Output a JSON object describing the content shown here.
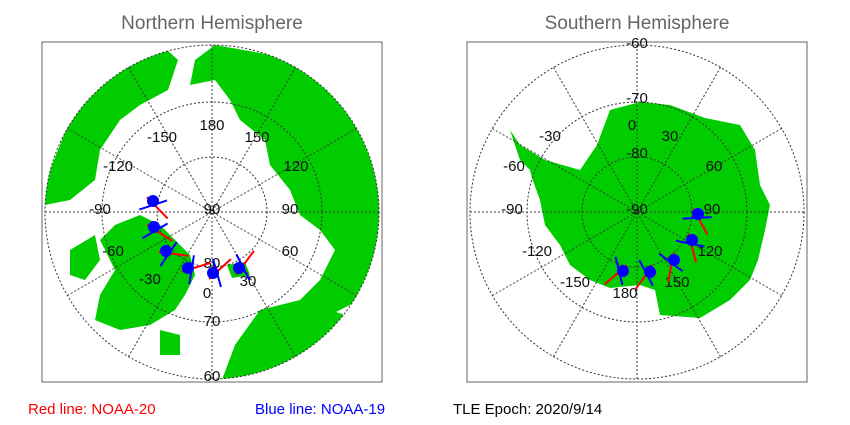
{
  "north": {
    "title": "Northern Hemisphere",
    "lon_labels": [
      "180",
      "-150",
      "150",
      "-120",
      "120",
      "-90",
      "90",
      "-60",
      "60",
      "-30",
      "30",
      "0"
    ],
    "lat_labels": [
      "90",
      "80",
      "70",
      "60"
    ]
  },
  "south": {
    "title": "Southern Hemisphere",
    "lon_labels": [
      "0",
      "-30",
      "30",
      "-60",
      "60",
      "-90",
      "90",
      "-120",
      "120",
      "-150",
      "150",
      "180"
    ],
    "lat_labels": [
      "-90",
      "-80",
      "-70",
      "-60"
    ]
  },
  "legend": {
    "red": "Red line: NOAA-20",
    "blue": "Blue line: NOAA-19",
    "epoch": "TLE Epoch: 2020/9/14"
  },
  "colors": {
    "land": "#00cc00",
    "red_track": "#ff0000",
    "blue_track": "#0000ff",
    "grid": "#333333"
  }
}
